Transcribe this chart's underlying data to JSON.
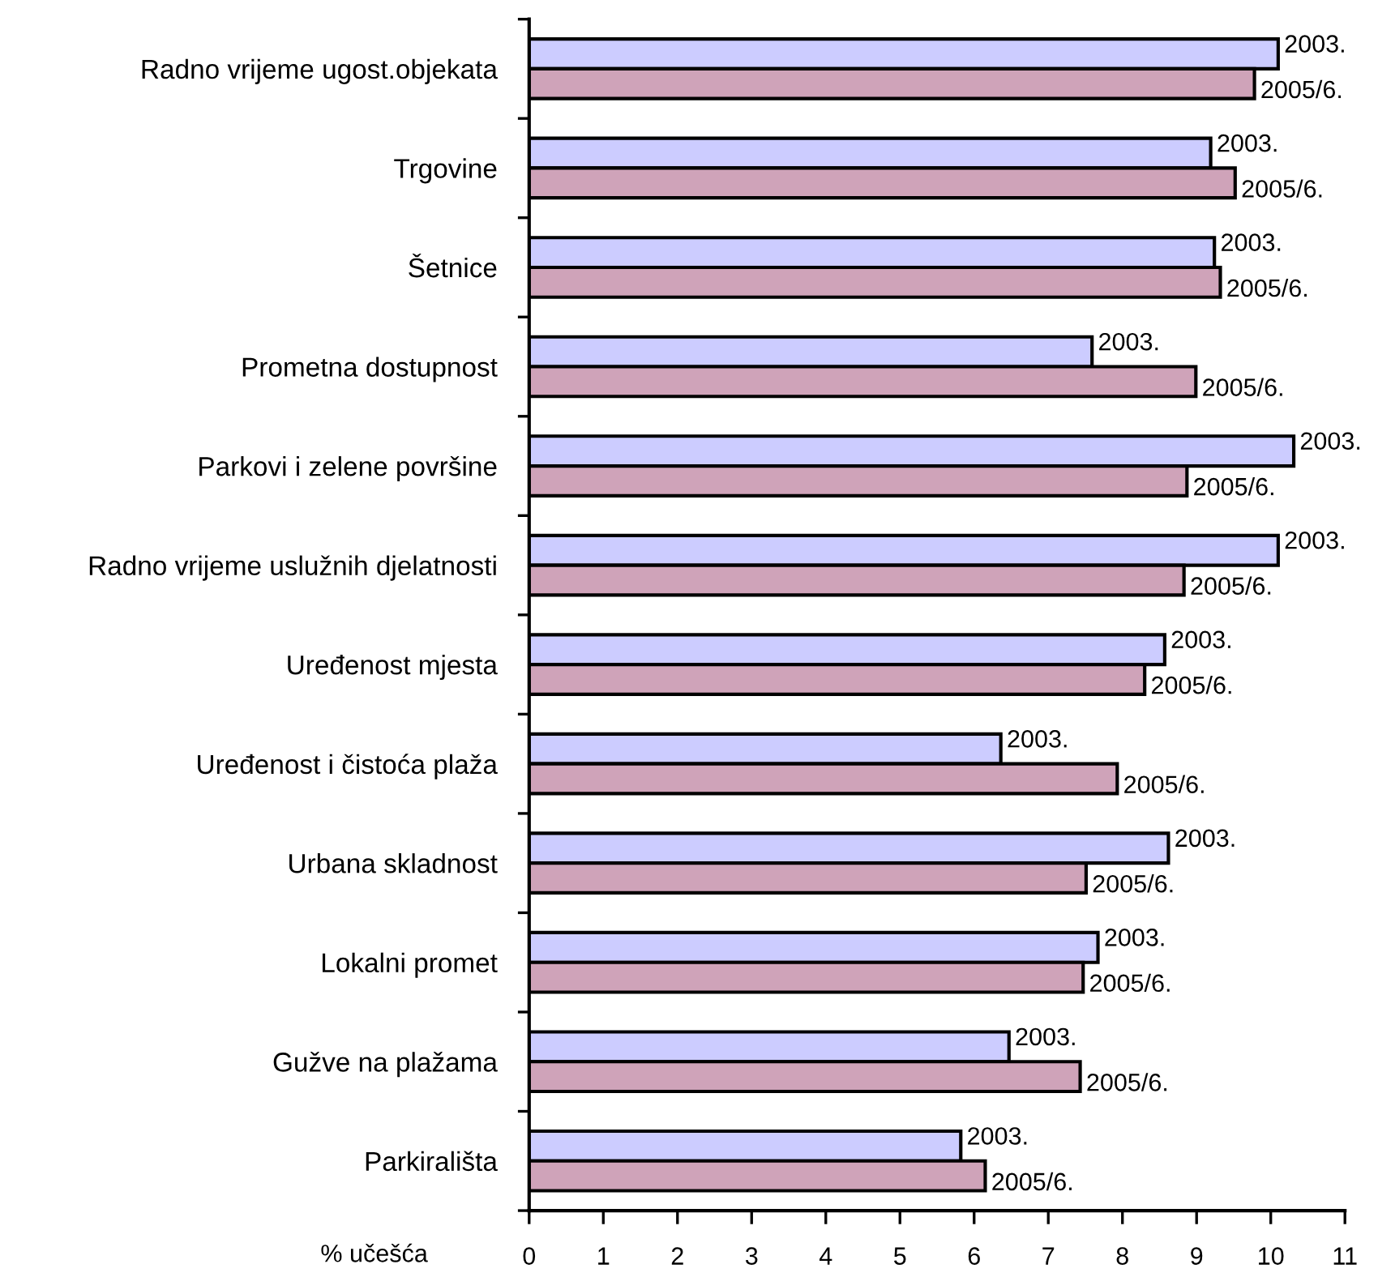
{
  "chart_data": {
    "type": "bar",
    "orientation": "horizontal",
    "xlabel": "% učešća",
    "categories": [
      "Radno vrijeme ugost.objekata",
      "Trgovine",
      "Šetnice",
      "Prometna dostupnost",
      "Parkovi i zelene površine",
      "Radno vrijeme uslužnih djelatnosti",
      "Uređenost mjesta",
      "Uređenost i čistoća plaža",
      "Urbana skladnost",
      "Lokalni promet",
      "Gužve na plažama",
      "Parkirališta"
    ],
    "series": [
      {
        "name": "2003.",
        "color": "#ccccff",
        "values": [
          10.1,
          9.19,
          9.24,
          7.59,
          10.31,
          10.1,
          8.57,
          6.36,
          8.62,
          7.67,
          6.47,
          5.82
        ]
      },
      {
        "name": "2005/6.",
        "color": "#cfa3b9",
        "values": [
          9.78,
          9.52,
          9.32,
          8.99,
          8.87,
          8.83,
          8.3,
          7.93,
          7.51,
          7.47,
          7.43,
          6.15
        ]
      }
    ],
    "xlim": [
      0,
      11
    ],
    "xticks": [
      0,
      1,
      2,
      3,
      4,
      5,
      6,
      7,
      8,
      9,
      10,
      11
    ],
    "grid": false,
    "legend": false
  }
}
